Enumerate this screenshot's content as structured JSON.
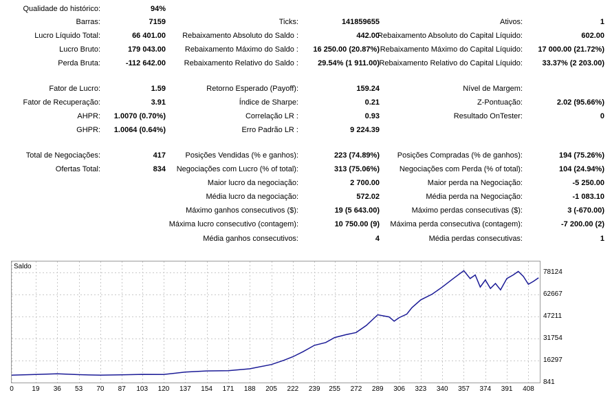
{
  "stats": {
    "quality_label": "Qualidade do histórico:",
    "quality_value": "94%",
    "bars_label": "Barras:",
    "bars_value": "7159",
    "ticks_label": "Ticks:",
    "ticks_value": "141859655",
    "assets_label": "Ativos:",
    "assets_value": "1",
    "net_profit_label": "Lucro Líquido Total:",
    "net_profit_value": "66 401.00",
    "abs_dd_balance_label": "Rebaixamento Absoluto do Saldo :",
    "abs_dd_balance_value": "442.00",
    "abs_dd_equity_label": "Rebaixamento Absoluto do Capital Líquido:",
    "abs_dd_equity_value": "602.00",
    "gross_profit_label": "Lucro Bruto:",
    "gross_profit_value": "179 043.00",
    "max_dd_balance_label": "Rebaixamento Máximo do Saldo :",
    "max_dd_balance_value": "16 250.00 (20.87%)",
    "max_dd_equity_label": "Rebaixamento Máximo do Capital Líquido:",
    "max_dd_equity_value": "17 000.00 (21.72%)",
    "gross_loss_label": "Perda Bruta:",
    "gross_loss_value": "-112 642.00",
    "rel_dd_balance_label": "Rebaixamento Relativo do Saldo :",
    "rel_dd_balance_value": "29.54% (1 911.00)",
    "rel_dd_equity_label": "Rebaixamento Relativo do Capital Líquido:",
    "rel_dd_equity_value": "33.37% (2 203.00)",
    "profit_factor_label": "Fator de Lucro:",
    "profit_factor_value": "1.59",
    "expected_payoff_label": "Retorno Esperado (Payoff):",
    "expected_payoff_value": "159.24",
    "margin_level_label": "Nível de Margem:",
    "margin_level_value": "",
    "recovery_factor_label": "Fator de Recuperação:",
    "recovery_factor_value": "3.91",
    "sharpe_label": "Índice de Sharpe:",
    "sharpe_value": "0.21",
    "z_score_label": "Z-Pontuação:",
    "z_score_value": "2.02 (95.66%)",
    "ahpr_label": "AHPR:",
    "ahpr_value": "1.0070 (0.70%)",
    "lr_corr_label": "Correlação LR :",
    "lr_corr_value": "0.93",
    "ontester_label": "Resultado OnTester:",
    "ontester_value": "0",
    "ghpr_label": "GHPR:",
    "ghpr_value": "1.0064 (0.64%)",
    "lr_std_err_label": "Erro Padrão LR :",
    "lr_std_err_value": "9 224.39",
    "total_trades_label": "Total de Negociações:",
    "total_trades_value": "417",
    "short_trades_label": "Posições Vendidas (% e ganhos):",
    "short_trades_value": "223 (74.89%)",
    "long_trades_label": "Posições Compradas (% de ganhos):",
    "long_trades_value": "194 (75.26%)",
    "total_deals_label": "Ofertas Total:",
    "total_deals_value": "834",
    "profit_trades_label": "Negociações com Lucro (% of total):",
    "profit_trades_value": "313 (75.06%)",
    "loss_trades_label": "Negociações com Perda (% of total):",
    "loss_trades_value": "104 (24.94%)",
    "largest_profit_label": "Maior lucro da negociação:",
    "largest_profit_value": "2 700.00",
    "largest_loss_label": "Maior perda na Negociação:",
    "largest_loss_value": "-5 250.00",
    "avg_profit_label": "Média lucro da negociação:",
    "avg_profit_value": "572.02",
    "avg_loss_label": "Média perda na Negociação:",
    "avg_loss_value": "-1 083.10",
    "max_cons_wins_label": "Máximo ganhos consecutivos ($):",
    "max_cons_wins_value": "19 (5 643.00)",
    "max_cons_losses_label": "Máximo perdas consecutivas ($):",
    "max_cons_losses_value": "3 (-670.00)",
    "max_cons_profit_label": "Máxima lucro consecutivo (contagem):",
    "max_cons_profit_value": "10 750.00 (9)",
    "max_cons_loss_label": "Máxima perda consecutiva (contagem):",
    "max_cons_loss_value": "-7 200.00 (2)",
    "avg_cons_wins_label": "Média ganhos consecutivos:",
    "avg_cons_wins_value": "4",
    "avg_cons_losses_label": "Média perdas consecutivas:",
    "avg_cons_losses_value": "1"
  },
  "chart_data": {
    "type": "line",
    "title": "Saldo",
    "line_color": "#1a1a96",
    "grid": true,
    "xlim": [
      0,
      417
    ],
    "ylim": [
      841,
      86000
    ],
    "x_ticks": [
      0,
      19,
      36,
      53,
      70,
      87,
      103,
      120,
      137,
      154,
      171,
      188,
      205,
      222,
      239,
      255,
      272,
      289,
      306,
      323,
      340,
      357,
      374,
      391,
      408
    ],
    "y_ticks": [
      841,
      16297,
      31754,
      47211,
      62667,
      78124
    ],
    "series": [
      {
        "x": [
          0,
          19,
          36,
          53,
          70,
          87,
          103,
          120,
          137,
          154,
          171,
          188,
          205,
          215,
          222,
          230,
          239,
          248,
          255,
          264,
          272,
          280,
          289,
          298,
          302,
          306,
          312,
          316,
          323,
          332,
          340,
          348,
          357,
          362,
          366,
          370,
          374,
          378,
          382,
          386,
          391,
          396,
          400,
          404,
          408,
          412,
          416
        ],
        "y": [
          6000,
          6500,
          7000,
          6400,
          6000,
          6300,
          6600,
          6500,
          8200,
          9000,
          9200,
          10500,
          13500,
          16500,
          19000,
          22500,
          27000,
          29000,
          32500,
          34500,
          36000,
          41000,
          48500,
          47000,
          44000,
          46500,
          49000,
          53500,
          59000,
          63000,
          68000,
          73500,
          79500,
          74000,
          76500,
          68000,
          73000,
          67000,
          70500,
          66000,
          74000,
          76500,
          79000,
          75500,
          70000,
          72000,
          74500
        ]
      }
    ]
  }
}
